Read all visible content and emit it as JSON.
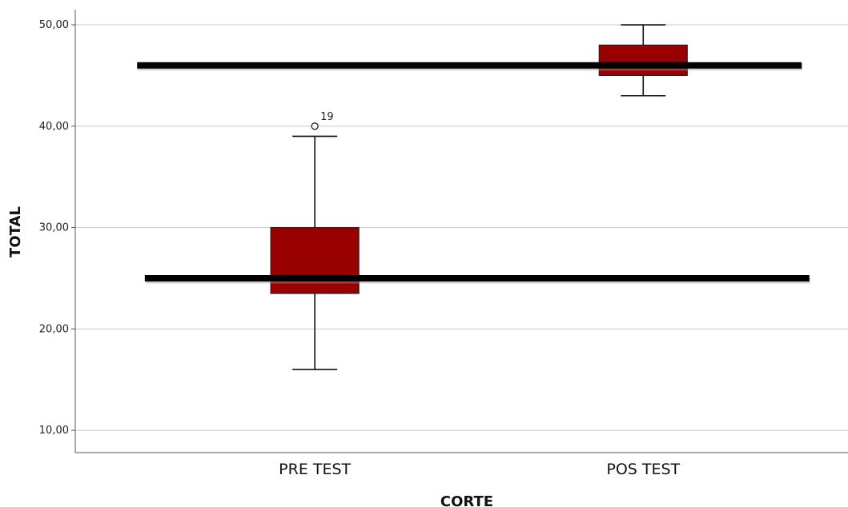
{
  "chart_data": {
    "type": "boxplot",
    "title": "",
    "xlabel": "CORTE",
    "ylabel": "TOTAL",
    "ylim": [
      7.8,
      51.5
    ],
    "yticks": [
      10,
      20,
      30,
      40,
      50
    ],
    "ytick_labels": [
      "10,00",
      "20,00",
      "30,00",
      "40,00",
      "50,00"
    ],
    "grid": true,
    "colors": {
      "box_fill": "#990000",
      "box_stroke": "#222222",
      "whisker": "#111111",
      "grid": "#c8c8c8",
      "reference_line": "#000000"
    },
    "categories": [
      "PRE TEST",
      "POS TEST"
    ],
    "boxes": [
      {
        "category": "PRE TEST",
        "whisker_low": 16,
        "q1": 23.5,
        "median": 25,
        "q3": 30,
        "whisker_high": 39,
        "outliers": [
          {
            "value": 40,
            "label": "19"
          }
        ]
      },
      {
        "category": "POS TEST",
        "whisker_low": 43,
        "q1": 45,
        "median": 46,
        "q3": 48,
        "whisker_high": 50,
        "outliers": []
      }
    ],
    "reference_lines": [
      {
        "y": 46,
        "x_from": 0.08,
        "x_to": 0.94
      },
      {
        "y": 25,
        "x_from": 0.09,
        "x_to": 0.95
      }
    ]
  }
}
